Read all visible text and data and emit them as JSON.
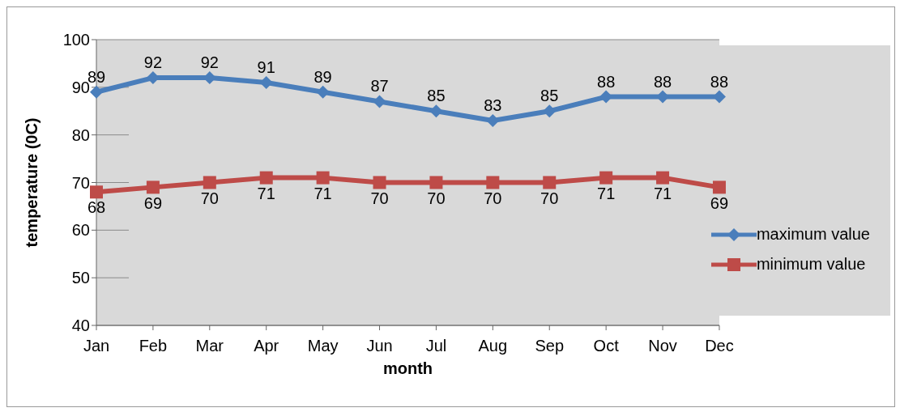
{
  "chart_data": {
    "type": "line",
    "xlabel": "month",
    "ylabel": "temperature (0C)",
    "categories": [
      "Jan",
      "Feb",
      "Mar",
      "Apr",
      "May",
      "Jun",
      "Jul",
      "Aug",
      "Sep",
      "Oct",
      "Nov",
      "Dec"
    ],
    "series": [
      {
        "name": "maximum value",
        "color": "#4a7ebb",
        "marker": "diamond",
        "values": [
          89,
          92,
          92,
          91,
          89,
          87,
          85,
          83,
          85,
          88,
          88,
          88
        ]
      },
      {
        "name": "minimum value",
        "color": "#be4b48",
        "marker": "square",
        "values": [
          68,
          69,
          70,
          71,
          71,
          70,
          70,
          70,
          70,
          71,
          71,
          69
        ]
      }
    ],
    "ylim": [
      40,
      100
    ],
    "yticks": [
      40,
      50,
      60,
      70,
      80,
      90,
      100
    ],
    "grid": "y",
    "legend": "bottom right",
    "data_labels": true
  }
}
